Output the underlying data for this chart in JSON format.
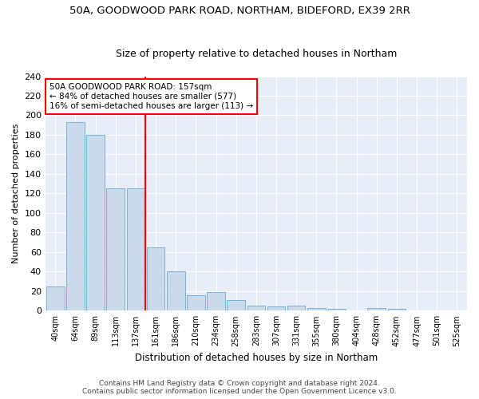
{
  "title1": "50A, GOODWOOD PARK ROAD, NORTHAM, BIDEFORD, EX39 2RR",
  "title2": "Size of property relative to detached houses in Northam",
  "xlabel": "Distribution of detached houses by size in Northam",
  "ylabel": "Number of detached properties",
  "categories": [
    "40sqm",
    "64sqm",
    "89sqm",
    "113sqm",
    "137sqm",
    "161sqm",
    "186sqm",
    "210sqm",
    "234sqm",
    "258sqm",
    "283sqm",
    "307sqm",
    "331sqm",
    "355sqm",
    "380sqm",
    "404sqm",
    "428sqm",
    "452sqm",
    "477sqm",
    "501sqm",
    "525sqm"
  ],
  "values": [
    25,
    193,
    180,
    125,
    125,
    65,
    40,
    16,
    19,
    11,
    5,
    4,
    5,
    3,
    2,
    0,
    3,
    2,
    0,
    0,
    0
  ],
  "bar_color": "#c9daea",
  "bar_edge_color": "#6aaad4",
  "redline_index": 5,
  "annotation_line1": "50A GOODWOOD PARK ROAD: 157sqm",
  "annotation_line2": "← 84% of detached houses are smaller (577)",
  "annotation_line3": "16% of semi-detached houses are larger (113) →",
  "footnote1": "Contains HM Land Registry data © Crown copyright and database right 2024.",
  "footnote2": "Contains public sector information licensed under the Open Government Licence v3.0.",
  "ylim": [
    0,
    240
  ],
  "yticks": [
    0,
    20,
    40,
    60,
    80,
    100,
    120,
    140,
    160,
    180,
    200,
    220,
    240
  ],
  "bg_color": "#e8eef8",
  "title1_fontsize": 9.5,
  "title2_fontsize": 9
}
